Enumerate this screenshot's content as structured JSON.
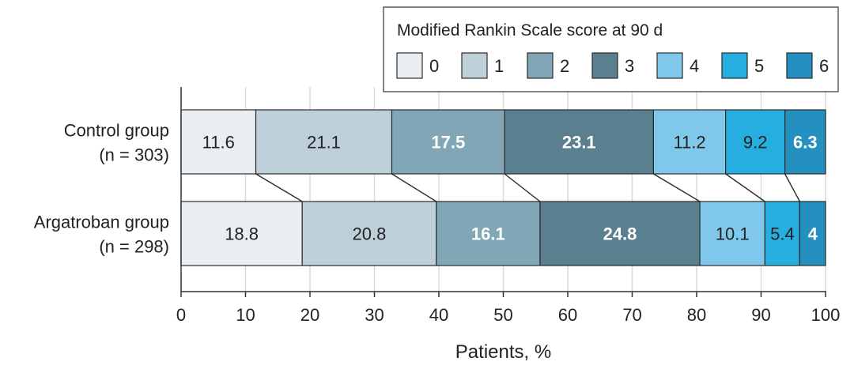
{
  "chart_data": {
    "type": "bar",
    "orientation": "horizontal",
    "stacked": true,
    "xlabel": "Patients, %",
    "xlim": [
      0,
      100
    ],
    "xticks": [
      0,
      10,
      20,
      30,
      40,
      50,
      60,
      70,
      80,
      90,
      100
    ],
    "grid": true,
    "legend": {
      "title": "Modified Rankin Scale score at 90 d",
      "placement": "top-right",
      "entries": [
        "0",
        "1",
        "2",
        "3",
        "4",
        "5",
        "6"
      ]
    },
    "categories": [
      {
        "line1": "Control group",
        "line2": "(n = 303)"
      },
      {
        "line1": "Argatroban group",
        "line2": "(n = 298)"
      }
    ],
    "series": [
      {
        "name": "0",
        "color": "#e8eef1",
        "label_color": "#222222",
        "values": [
          11.6,
          18.8
        ]
      },
      {
        "name": "1",
        "color": "#bdd0da",
        "label_color": "#222222",
        "values": [
          21.1,
          20.8
        ]
      },
      {
        "name": "2",
        "color": "#81a7b6",
        "label_color": "#ffffff",
        "values": [
          17.5,
          16.1
        ]
      },
      {
        "name": "3",
        "color": "#5a7f8e",
        "label_color": "#ffffff",
        "values": [
          23.1,
          24.8
        ]
      },
      {
        "name": "4",
        "color": "#7fc8ec",
        "label_color": "#222222",
        "values": [
          11.2,
          10.1
        ]
      },
      {
        "name": "5",
        "color": "#27aee0",
        "label_color": "#222222",
        "values": [
          9.2,
          5.4
        ]
      },
      {
        "name": "6",
        "color": "#2490bf",
        "label_color": "#ffffff",
        "values": [
          6.3,
          4
        ]
      }
    ]
  }
}
